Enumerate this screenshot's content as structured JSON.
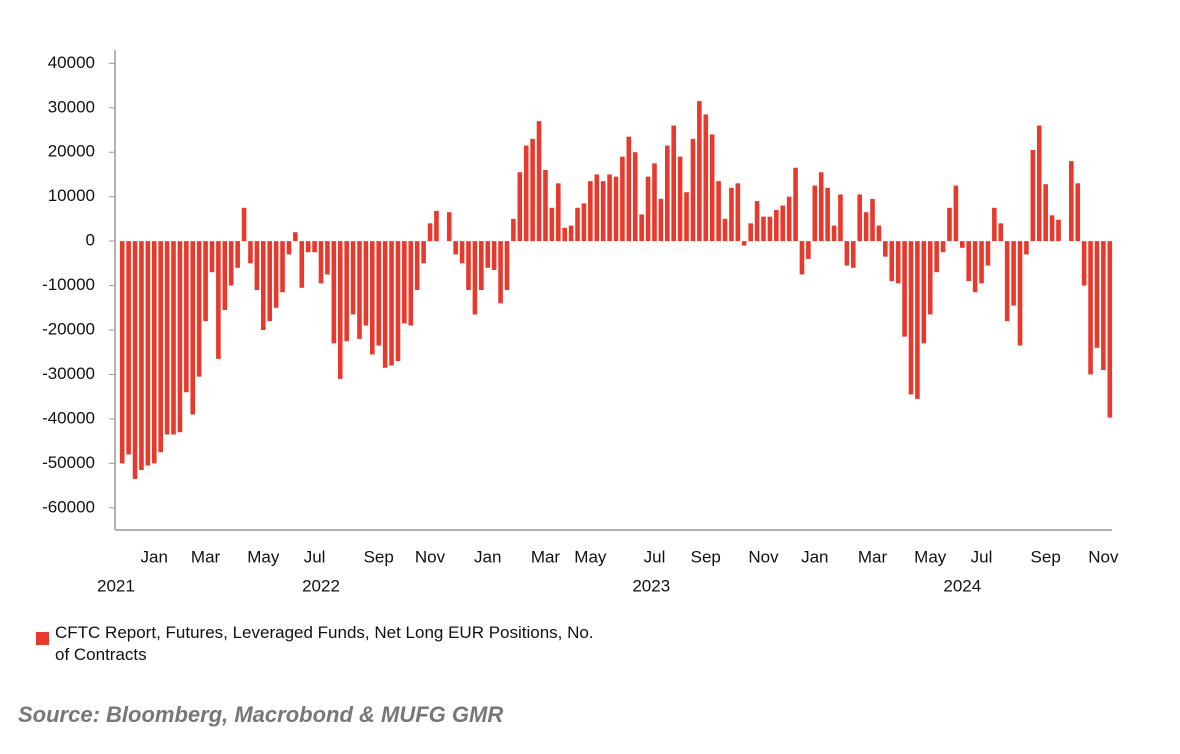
{
  "chart_data": {
    "type": "bar",
    "categories": [
      null,
      null,
      null,
      null,
      null,
      "Jan",
      null,
      null,
      null,
      null,
      null,
      null,
      null,
      "Mar",
      null,
      null,
      null,
      null,
      null,
      null,
      null,
      null,
      "May",
      null,
      null,
      null,
      null,
      null,
      null,
      null,
      "Jul",
      null,
      null,
      null,
      null,
      null,
      null,
      null,
      null,
      null,
      "Sep",
      null,
      null,
      null,
      null,
      null,
      null,
      null,
      "Nov",
      null,
      null,
      null,
      null,
      null,
      null,
      null,
      null,
      "Jan",
      null,
      null,
      null,
      null,
      null,
      null,
      null,
      null,
      "Mar",
      null,
      null,
      null,
      null,
      null,
      null,
      "May",
      null,
      null,
      null,
      null,
      null,
      null,
      null,
      null,
      null,
      "Jul",
      null,
      null,
      null,
      null,
      null,
      null,
      null,
      "Sep",
      null,
      null,
      null,
      null,
      null,
      null,
      null,
      null,
      "Nov",
      null,
      null,
      null,
      null,
      null,
      null,
      null,
      "Jan",
      null,
      null,
      null,
      null,
      null,
      null,
      null,
      null,
      "Mar",
      null,
      null,
      null,
      null,
      null,
      null,
      null,
      null,
      "May",
      null,
      null,
      null,
      null,
      null,
      null,
      null,
      "Jul",
      null,
      null,
      null,
      null,
      null,
      null,
      null,
      null,
      null,
      "Sep",
      null,
      null,
      null,
      null,
      null,
      null,
      null,
      null,
      "Nov",
      null
    ],
    "year_labels": [
      "2021",
      "2022",
      "2023",
      "2024"
    ],
    "values": [
      -50000,
      -48000,
      -53500,
      -51500,
      -50500,
      -50000,
      -47500,
      -43500,
      -43500,
      -43000,
      -34000,
      -39000,
      -30500,
      -18000,
      -7000,
      -26500,
      -15500,
      -10000,
      -6000,
      7500,
      -5000,
      -11000,
      -20000,
      -18000,
      -15000,
      -11500,
      -3000,
      2000,
      -10500,
      -2500,
      -2500,
      -9500,
      -7500,
      -23000,
      -31000,
      -22500,
      -16500,
      -22000,
      -19000,
      -25500,
      -23500,
      -28500,
      -28000,
      -27000,
      -18500,
      -19000,
      -11000,
      -5000,
      4000,
      6800,
      0,
      6500,
      -3000,
      -5000,
      -11000,
      -16500,
      -11000,
      -6000,
      -6500,
      -14000,
      -11000,
      5000,
      15500,
      21500,
      23000,
      27000,
      16000,
      7500,
      13000,
      3000,
      3500,
      7500,
      8500,
      13500,
      15000,
      13500,
      15000,
      14500,
      19000,
      23500,
      20000,
      6000,
      14500,
      17500,
      9500,
      21500,
      26000,
      19000,
      11000,
      23000,
      31500,
      28500,
      24000,
      13500,
      5000,
      12000,
      13000,
      -1000,
      4000,
      9000,
      5500,
      5500,
      7000,
      8000,
      10000,
      16500,
      -7500,
      -4000,
      12500,
      15500,
      12000,
      3500,
      10500,
      -5500,
      -6000,
      10500,
      6500,
      9500,
      3500,
      -3500,
      -9000,
      -9500,
      -21500,
      -34500,
      -35500,
      -23000,
      -16500,
      -7000,
      -2500,
      7500,
      12500,
      -1500,
      -9000,
      -11500,
      -9500,
      -5500,
      7500,
      4000,
      -18000,
      -14500,
      -23500,
      -3000,
      20500,
      26000,
      12800,
      5800,
      4800,
      0,
      18000,
      13000,
      -10000,
      -30000,
      -24000,
      -29000,
      -39700
    ],
    "color": "#e8392d",
    "ylim": [
      -65000,
      43000
    ],
    "yticks": [
      40000,
      30000,
      20000,
      10000,
      0,
      -10000,
      -20000,
      -30000,
      -40000,
      -50000,
      -60000
    ],
    "grid": false,
    "legend": "CFTC Report, Futures, Leveraged Funds, Net Long EUR Positions, No. of Contracts",
    "source": "Source: Bloomberg, Macrobond & MUFG GMR"
  }
}
